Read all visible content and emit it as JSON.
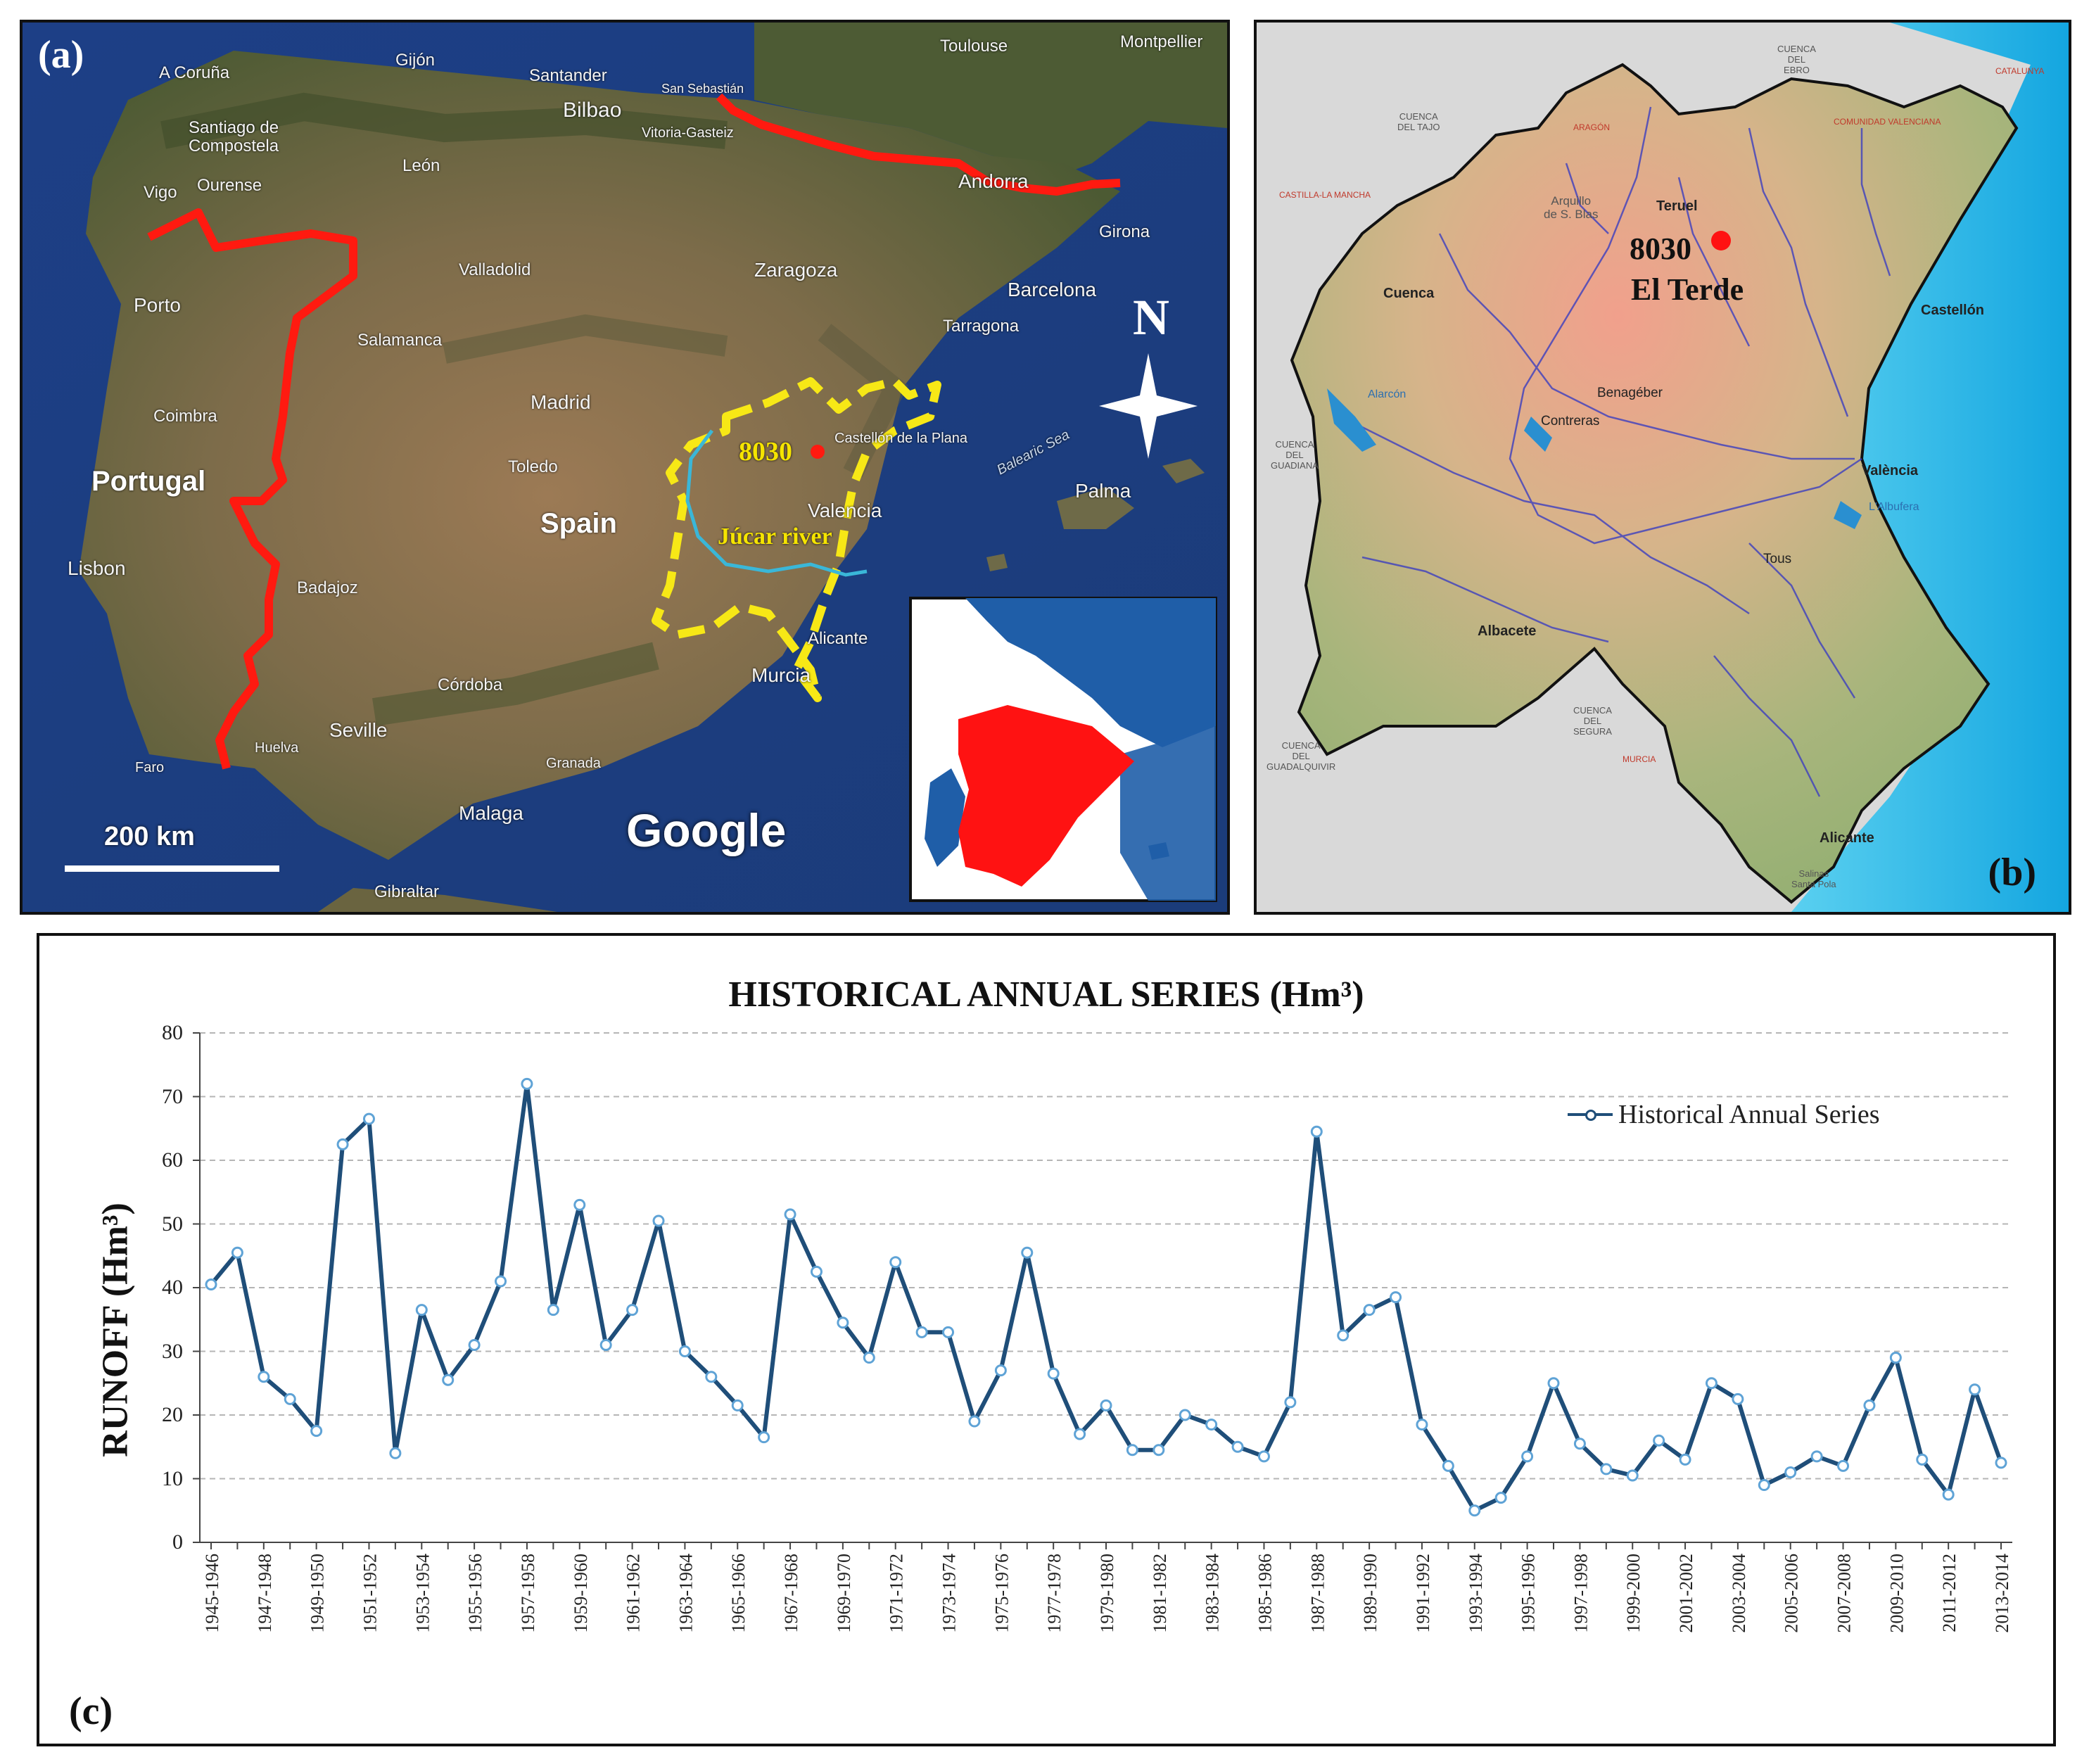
{
  "panel_a": {
    "letter": "(a)",
    "cities": [
      {
        "text": "Toulouse",
        "cls": "city"
      },
      {
        "text": "Montpellier",
        "cls": "city"
      },
      {
        "text": "A Coruña",
        "cls": "city"
      },
      {
        "text": "Gijón",
        "cls": "city"
      },
      {
        "text": "Santander",
        "cls": "city"
      },
      {
        "text": "San Sebastián",
        "cls": "city"
      },
      {
        "text": "Bilbao",
        "cls": "city"
      },
      {
        "text": "Vitoria-Gasteiz",
        "cls": "city"
      },
      {
        "text": "Santiago de",
        "cls": "city"
      },
      {
        "text": "Compostela",
        "cls": "city"
      },
      {
        "text": "León",
        "cls": "city"
      },
      {
        "text": "Ourense",
        "cls": "city"
      },
      {
        "text": "Vigo",
        "cls": "city"
      },
      {
        "text": "Andorra",
        "cls": "city"
      },
      {
        "text": "Girona",
        "cls": "city"
      },
      {
        "text": "Valladolid",
        "cls": "city"
      },
      {
        "text": "Zaragoza",
        "cls": "city"
      },
      {
        "text": "Barcelona",
        "cls": "city"
      },
      {
        "text": "Tarragona",
        "cls": "city"
      },
      {
        "text": "Porto",
        "cls": "city"
      },
      {
        "text": "Salamanca",
        "cls": "city"
      },
      {
        "text": "Madrid",
        "cls": "city"
      },
      {
        "text": "Castellón de la Plana",
        "cls": "city"
      },
      {
        "text": "Coimbra",
        "cls": "city"
      },
      {
        "text": "Balearic Sea",
        "cls": "city sea"
      },
      {
        "text": "Portugal",
        "cls": "city big"
      },
      {
        "text": "Toledo",
        "cls": "city"
      },
      {
        "text": "Palma",
        "cls": "city"
      },
      {
        "text": "Valencia",
        "cls": "city"
      },
      {
        "text": "Spain",
        "cls": "city big"
      },
      {
        "text": "Lisbon",
        "cls": "city"
      },
      {
        "text": "Badajoz",
        "cls": "city"
      },
      {
        "text": "Alicante",
        "cls": "city"
      },
      {
        "text": "Córdoba",
        "cls": "city"
      },
      {
        "text": "Murcia",
        "cls": "city"
      },
      {
        "text": "Seville",
        "cls": "city"
      },
      {
        "text": "Huelva",
        "cls": "city"
      },
      {
        "text": "Faro",
        "cls": "city"
      },
      {
        "text": "Granada",
        "cls": "city"
      },
      {
        "text": "Malaga",
        "cls": "city"
      },
      {
        "text": "Gibraltar",
        "cls": "city"
      }
    ],
    "station_label": "8030",
    "river_label": "Júcar river",
    "north_label": "N",
    "scale_label": "200 km",
    "google_label": "Google"
  },
  "panel_b": {
    "letter": "(b)",
    "station_code": "8030",
    "station_name": "El Terde",
    "labels": [
      {
        "text": "CUENCA\nDEL\nEBRO",
        "cls": "blabel basin"
      },
      {
        "text": "CUENCA\nDEL TAJO",
        "cls": "blabel basin"
      },
      {
        "text": "ARAGÓN",
        "cls": "blabel region"
      },
      {
        "text": "COMUNIDAD VALENCIANA",
        "cls": "blabel region"
      },
      {
        "text": "CATALUNYA",
        "cls": "blabel region"
      },
      {
        "text": "CASTILLA-LA MANCHA",
        "cls": "blabel region"
      },
      {
        "text": "Teruel",
        "cls": "blabel bold"
      },
      {
        "text": "Arquillo\nde S. Blas",
        "cls": "blabel basin"
      },
      {
        "text": "Cuenca",
        "cls": "blabel bold"
      },
      {
        "text": "Castellón",
        "cls": "blabel bold"
      },
      {
        "text": "Alarcón",
        "cls": "blabel water"
      },
      {
        "text": "Benagéber",
        "cls": "blabel"
      },
      {
        "text": "Contreras",
        "cls": "blabel"
      },
      {
        "text": "CUENCA\nDEL\nGUADIANA",
        "cls": "blabel basin"
      },
      {
        "text": "València",
        "cls": "blabel bold"
      },
      {
        "text": "L'Albufera",
        "cls": "blabel water"
      },
      {
        "text": "Tous",
        "cls": "blabel"
      },
      {
        "text": "Albacete",
        "cls": "blabel bold"
      },
      {
        "text": "CUENCA\nDEL\nSEGURA",
        "cls": "blabel basin"
      },
      {
        "text": "MURCIA",
        "cls": "blabel region"
      },
      {
        "text": "CUENCA\nDEL\nGUADALQUIVIR",
        "cls": "blabel basin"
      },
      {
        "text": "Alicante",
        "cls": "blabel bold"
      },
      {
        "text": "Salinas\nSanta Pola",
        "cls": "blabel basin"
      }
    ]
  },
  "panel_c": {
    "letter": "(c)",
    "legend_label": "Historical Annual Series"
  },
  "chart_data": {
    "type": "line",
    "title": "HISTORICAL ANNUAL SERIES (Hm³)",
    "ylabel": "RUNOFF (Hm³)",
    "xlabel": "",
    "ylim": [
      0,
      80
    ],
    "yticks": [
      0,
      10,
      20,
      30,
      40,
      50,
      60,
      70,
      80
    ],
    "grid": "horizontal dashed",
    "legend_position": "top-right",
    "series_color": "#1f4e79",
    "categories": [
      "1945-1946",
      "1946-1947",
      "1947-1948",
      "1948-1949",
      "1949-1950",
      "1950-1951",
      "1951-1952",
      "1952-1953",
      "1953-1954",
      "1954-1955",
      "1955-1956",
      "1956-1957",
      "1957-1958",
      "1958-1959",
      "1959-1960",
      "1960-1961",
      "1961-1962",
      "1962-1963",
      "1963-1964",
      "1964-1965",
      "1965-1966",
      "1966-1967",
      "1967-1968",
      "1968-1969",
      "1969-1970",
      "1970-1971",
      "1971-1972",
      "1972-1973",
      "1973-1974",
      "1974-1975",
      "1975-1976",
      "1976-1977",
      "1977-1978",
      "1978-1979",
      "1979-1980",
      "1980-1981",
      "1981-1982",
      "1982-1983",
      "1983-1984",
      "1984-1985",
      "1985-1986",
      "1986-1987",
      "1987-1988",
      "1988-1989",
      "1989-1990",
      "1990-1991",
      "1991-1992",
      "1992-1993",
      "1993-1994",
      "1994-1995",
      "1995-1996",
      "1996-1997",
      "1997-1998",
      "1998-1999",
      "1999-2000",
      "2000-2001",
      "2001-2002",
      "2002-2003",
      "2003-2004",
      "2004-2005",
      "2005-2006",
      "2006-2007",
      "2007-2008",
      "2008-2009",
      "2009-2010",
      "2010-2011",
      "2011-2012",
      "2012-2013",
      "2013-2014"
    ],
    "tick_labels": [
      "1945-1946",
      "1947-1948",
      "1949-1950",
      "1951-1952",
      "1953-1954",
      "1955-1956",
      "1957-1958",
      "1959-1960",
      "1961-1962",
      "1963-1964",
      "1965-1966",
      "1967-1968",
      "1969-1970",
      "1971-1972",
      "1973-1974",
      "1975-1976",
      "1977-1978",
      "1979-1980",
      "1981-1982",
      "1983-1984",
      "1985-1986",
      "1987-1988",
      "1989-1990",
      "1991-1992",
      "1993-1994",
      "1995-1996",
      "1997-1998",
      "1999-2000",
      "2001-2002",
      "2003-2004",
      "2005-2006",
      "2007-2008",
      "2009-2010",
      "2011-2012",
      "2013-2014"
    ],
    "series": [
      {
        "name": "Historical Annual Series",
        "values": [
          40.5,
          45.5,
          26,
          22.5,
          17.5,
          62.5,
          66.5,
          14,
          36.5,
          25.5,
          31,
          41,
          72,
          36.5,
          53,
          31,
          36.5,
          50.5,
          30,
          26,
          21.5,
          16.5,
          51.5,
          42.5,
          34.5,
          29,
          44,
          33,
          33,
          19,
          27,
          45.5,
          26.5,
          17,
          21.5,
          14.5,
          14.5,
          20,
          18.5,
          15,
          13.5,
          22,
          64.5,
          32.5,
          36.5,
          38.5,
          18.5,
          12,
          5,
          7,
          13.5,
          25,
          15.5,
          11.5,
          10.5,
          16,
          13,
          25,
          22.5,
          9,
          11,
          13.5,
          12,
          21.5,
          29,
          13,
          7.5,
          24,
          12.5
        ]
      }
    ]
  }
}
